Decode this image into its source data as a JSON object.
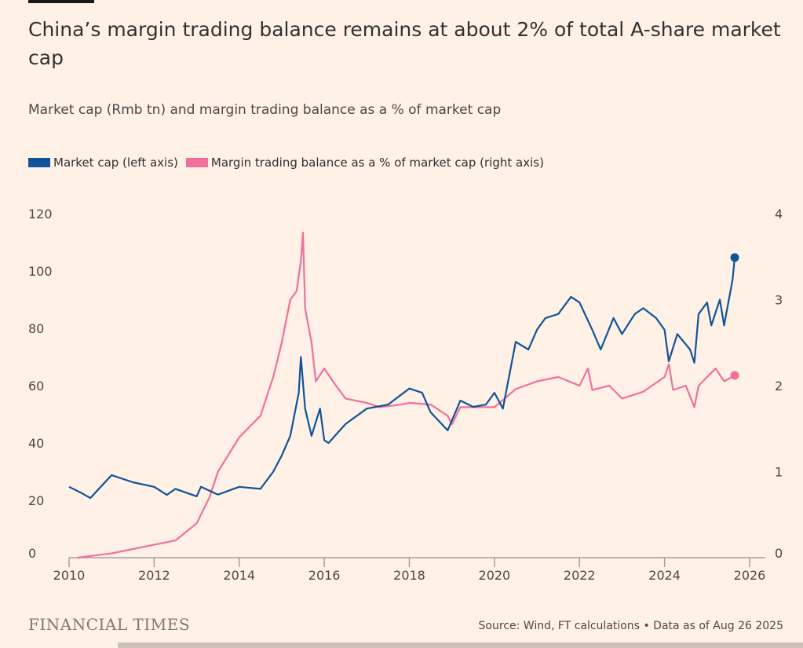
{
  "chart_data": {
    "type": "line",
    "title": "China’s margin trading balance remains at about 2% of total A-share market cap",
    "subtitle": "Market cap (Rmb tn) and margin trading balance as a % of market cap",
    "xlabel": "",
    "ylabel_left": "",
    "ylabel_right": "",
    "x_ticks": [
      "2010",
      "2012",
      "2014",
      "2016",
      "2018",
      "2020",
      "2022",
      "2024",
      "2026"
    ],
    "xlim": [
      2010,
      2026
    ],
    "y_left_ticks": [
      "0",
      "20",
      "40",
      "60",
      "80",
      "100",
      "120"
    ],
    "y_left_lim": [
      0,
      120
    ],
    "y_right_ticks": [
      "0",
      "1",
      "2",
      "3",
      "4"
    ],
    "y_right_lim": [
      0,
      4
    ],
    "grid": false,
    "legend_position": "top-left",
    "series": [
      {
        "name": "Market cap (left axis)",
        "axis": "left",
        "color": "#0f5499",
        "x": [
          2010.0,
          2010.3,
          2010.5,
          2010.7,
          2011.0,
          2011.5,
          2012.0,
          2012.3,
          2012.5,
          2013.0,
          2013.1,
          2013.5,
          2014.0,
          2014.5,
          2014.8,
          2015.0,
          2015.2,
          2015.4,
          2015.45,
          2015.55,
          2015.7,
          2015.9,
          2016.0,
          2016.1,
          2016.5,
          2017.0,
          2017.5,
          2018.0,
          2018.3,
          2018.5,
          2018.9,
          2019.2,
          2019.5,
          2019.8,
          2020.0,
          2020.2,
          2020.5,
          2020.8,
          2021.0,
          2021.2,
          2021.5,
          2021.8,
          2022.0,
          2022.3,
          2022.5,
          2022.8,
          2023.0,
          2023.3,
          2023.5,
          2023.8,
          2024.0,
          2024.1,
          2024.3,
          2024.6,
          2024.7,
          2024.8,
          2025.0,
          2025.1,
          2025.3,
          2025.4,
          2025.5,
          2025.6,
          2025.65
        ],
        "values": [
          24.7,
          22.5,
          20.8,
          24,
          28.8,
          26.3,
          24.7,
          21.9,
          24,
          21.4,
          24.7,
          22,
          24.7,
          24,
          30,
          35.6,
          42.5,
          57.5,
          70,
          52,
          42.5,
          52,
          41,
          40,
          46.6,
          52,
          53.4,
          59,
          57.5,
          50.7,
          44.4,
          54.8,
          52.6,
          53.4,
          57.5,
          52,
          75.3,
          72.6,
          79.5,
          83.6,
          85,
          91,
          89,
          79.5,
          72.6,
          83.6,
          78,
          85,
          87,
          83.6,
          79.5,
          68.5,
          78,
          72.6,
          68,
          85,
          89,
          81,
          90,
          81,
          89,
          97,
          104.7
        ]
      },
      {
        "name": "Margin trading balance as a % of market cap (right axis)",
        "axis": "right",
        "color": "#f0709b",
        "x": [
          2010.2,
          2011.0,
          2012.0,
          2012.5,
          2013.0,
          2013.3,
          2013.5,
          2014.0,
          2014.5,
          2014.8,
          2015.0,
          2015.2,
          2015.35,
          2015.45,
          2015.5,
          2015.55,
          2015.7,
          2015.8,
          2016.0,
          2016.2,
          2016.5,
          2017.0,
          2017.3,
          2017.8,
          2018.0,
          2018.5,
          2018.9,
          2019.0,
          2019.2,
          2020.0,
          2020.5,
          2021.0,
          2021.5,
          2022.0,
          2022.2,
          2022.3,
          2022.7,
          2023.0,
          2023.5,
          2024.0,
          2024.1,
          2024.2,
          2024.5,
          2024.7,
          2024.8,
          2025.0,
          2025.2,
          2025.4,
          2025.65
        ],
        "values": [
          0,
          0.05,
          0.15,
          0.2,
          0.4,
          0.7,
          1.0,
          1.4,
          1.65,
          2.1,
          2.5,
          3.0,
          3.1,
          3.45,
          3.78,
          2.9,
          2.5,
          2.05,
          2.2,
          2.05,
          1.85,
          1.8,
          1.75,
          1.78,
          1.8,
          1.78,
          1.65,
          1.55,
          1.75,
          1.75,
          1.96,
          2.05,
          2.1,
          2.0,
          2.2,
          1.95,
          2.0,
          1.85,
          1.93,
          2.1,
          2.25,
          1.95,
          2.0,
          1.75,
          2.0,
          2.1,
          2.2,
          2.05,
          2.12
        ]
      }
    ]
  },
  "legend": {
    "items": [
      {
        "label": "Market cap (left axis)",
        "color": "#0f5499"
      },
      {
        "label": "Margin trading balance as a % of market cap (right axis)",
        "color": "#f0709b"
      }
    ]
  },
  "footer": {
    "brand": "FINANCIAL TIMES",
    "source": "Source: Wind, FT calculations • Data as of Aug 26 2025"
  }
}
